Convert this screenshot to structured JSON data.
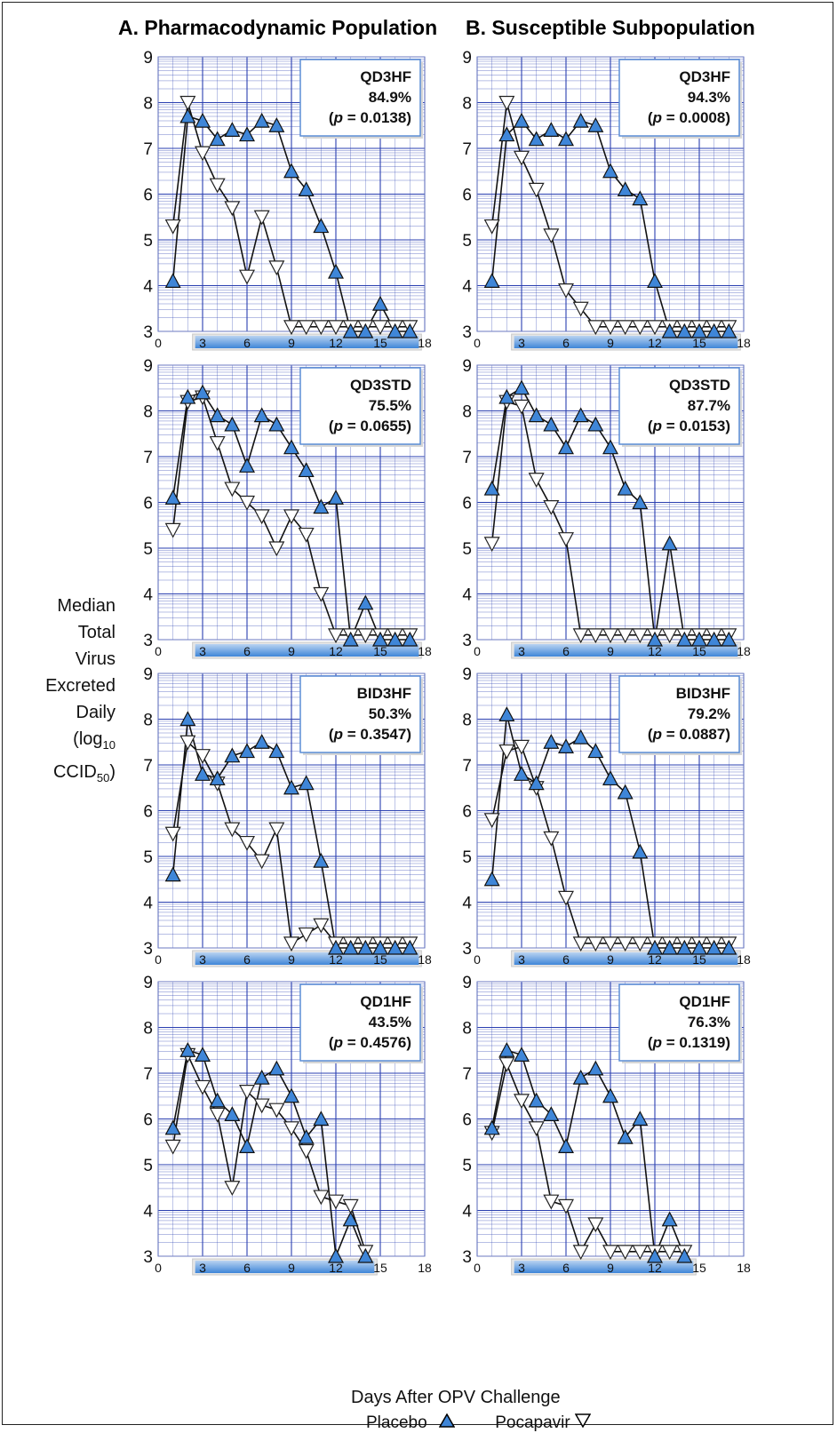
{
  "titles": {
    "a": "A.  Pharmacodynamic Population",
    "b": "B.  Susceptible Subpopulation"
  },
  "y_axis_label": [
    "Median",
    "Total",
    "Virus",
    "Excreted",
    "Daily",
    "(log",
    "10",
    "CCID",
    "50",
    ")"
  ],
  "x_axis_label": "Days After OPV Challenge",
  "legend": {
    "placebo": "Placebo",
    "pocapavir": "Pocapavir"
  },
  "colors": {
    "placebo_fill": "#3f86d8",
    "pocapavir_fill": "#ffffff",
    "grid": "#2a3fb0",
    "annotation_border": "#5b8ed6"
  },
  "chart_data": [
    {
      "type": "line",
      "column": "A",
      "regimen": "QD3HF",
      "reduction": "84.9%",
      "p_value": "0.0138",
      "x_ticks": [
        0,
        3,
        6,
        9,
        12,
        15,
        18
      ],
      "ylim": [
        3,
        9
      ],
      "xlim": [
        0,
        18
      ],
      "series": [
        {
          "name": "Placebo",
          "x": [
            1,
            2,
            3,
            4,
            5,
            6,
            7,
            8,
            9,
            10,
            11,
            12,
            13,
            14,
            15,
            16,
            17
          ],
          "values": [
            4.1,
            7.7,
            7.6,
            7.2,
            7.4,
            7.3,
            7.6,
            7.5,
            6.5,
            6.1,
            5.3,
            4.3,
            3.0,
            3.0,
            3.6,
            3.0,
            3.0
          ]
        },
        {
          "name": "Pocapavir",
          "x": [
            1,
            2,
            3,
            4,
            5,
            6,
            7,
            8,
            9,
            10,
            11,
            12,
            13,
            14,
            15,
            16,
            17
          ],
          "values": [
            5.3,
            8.0,
            6.9,
            6.2,
            5.7,
            4.2,
            5.5,
            4.4,
            3.1,
            3.1,
            3.1,
            3.1,
            3.1,
            3.1,
            3.1,
            3.1,
            3.1
          ]
        }
      ]
    },
    {
      "type": "line",
      "column": "B",
      "regimen": "QD3HF",
      "reduction": "94.3%",
      "p_value": "0.0008",
      "x_ticks": [
        0,
        3,
        6,
        9,
        12,
        15,
        18
      ],
      "ylim": [
        3,
        9
      ],
      "xlim": [
        0,
        18
      ],
      "series": [
        {
          "name": "Placebo",
          "x": [
            1,
            2,
            3,
            4,
            5,
            6,
            7,
            8,
            9,
            10,
            11,
            12,
            13,
            14,
            15,
            16,
            17
          ],
          "values": [
            4.1,
            7.3,
            7.6,
            7.2,
            7.4,
            7.2,
            7.6,
            7.5,
            6.5,
            6.1,
            5.9,
            4.1,
            3.0,
            3.0,
            3.0,
            3.0,
            3.0
          ]
        },
        {
          "name": "Pocapavir",
          "x": [
            1,
            2,
            3,
            4,
            5,
            6,
            7,
            8,
            9,
            10,
            11,
            12,
            13,
            14,
            15,
            16,
            17
          ],
          "values": [
            5.3,
            8.0,
            6.8,
            6.1,
            5.1,
            3.9,
            3.5,
            3.1,
            3.1,
            3.1,
            3.1,
            3.1,
            3.1,
            3.1,
            3.1,
            3.1,
            3.1
          ]
        }
      ]
    },
    {
      "type": "line",
      "column": "A",
      "regimen": "QD3STD",
      "reduction": "75.5%",
      "p_value": "0.0655",
      "x_ticks": [
        0,
        3,
        6,
        9,
        12,
        15,
        18
      ],
      "ylim": [
        3,
        9
      ],
      "xlim": [
        0,
        18
      ],
      "series": [
        {
          "name": "Placebo",
          "x": [
            1,
            2,
            3,
            4,
            5,
            6,
            7,
            8,
            9,
            10,
            11,
            12,
            13,
            14,
            15,
            16,
            17
          ],
          "values": [
            6.1,
            8.3,
            8.4,
            7.9,
            7.7,
            6.8,
            7.9,
            7.7,
            7.2,
            6.7,
            5.9,
            6.1,
            3.0,
            3.8,
            3.0,
            3.0,
            3.0
          ]
        },
        {
          "name": "Pocapavir",
          "x": [
            1,
            2,
            3,
            4,
            5,
            6,
            7,
            8,
            9,
            10,
            11,
            12,
            13,
            14,
            15,
            16,
            17
          ],
          "values": [
            5.4,
            8.2,
            8.3,
            7.3,
            6.3,
            6.0,
            5.7,
            5.0,
            5.7,
            5.3,
            4.0,
            3.1,
            3.1,
            3.1,
            3.1,
            3.1,
            3.1
          ]
        }
      ]
    },
    {
      "type": "line",
      "column": "B",
      "regimen": "QD3STD",
      "reduction": "87.7%",
      "p_value": "0.0153",
      "x_ticks": [
        0,
        3,
        6,
        9,
        12,
        15,
        18
      ],
      "ylim": [
        3,
        9
      ],
      "xlim": [
        0,
        18
      ],
      "series": [
        {
          "name": "Placebo",
          "x": [
            1,
            2,
            3,
            4,
            5,
            6,
            7,
            8,
            9,
            10,
            11,
            12,
            13,
            14,
            15,
            16,
            17
          ],
          "values": [
            6.3,
            8.3,
            8.5,
            7.9,
            7.7,
            7.2,
            7.9,
            7.7,
            7.2,
            6.3,
            6.0,
            3.0,
            5.1,
            3.0,
            3.0,
            3.0,
            3.0
          ]
        },
        {
          "name": "Pocapavir",
          "x": [
            1,
            2,
            3,
            4,
            5,
            6,
            7,
            8,
            9,
            10,
            11,
            12,
            13,
            14,
            15,
            16,
            17
          ],
          "values": [
            5.1,
            8.2,
            8.1,
            6.5,
            5.9,
            5.2,
            3.1,
            3.1,
            3.1,
            3.1,
            3.1,
            3.1,
            3.1,
            3.1,
            3.1,
            3.1,
            3.1
          ]
        }
      ]
    },
    {
      "type": "line",
      "column": "A",
      "regimen": "BID3HF",
      "reduction": "50.3%",
      "p_value": "0.3547",
      "x_ticks": [
        0,
        3,
        6,
        9,
        12,
        15,
        18
      ],
      "ylim": [
        3,
        9
      ],
      "xlim": [
        0,
        18
      ],
      "series": [
        {
          "name": "Placebo",
          "x": [
            1,
            2,
            3,
            4,
            5,
            6,
            7,
            8,
            9,
            10,
            11,
            12,
            13,
            14,
            15,
            16,
            17
          ],
          "values": [
            4.6,
            8.0,
            6.8,
            6.7,
            7.2,
            7.3,
            7.5,
            7.3,
            6.5,
            6.6,
            4.9,
            3.0,
            3.0,
            3.0,
            3.0,
            3.0,
            3.0
          ]
        },
        {
          "name": "Pocapavir",
          "x": [
            1,
            2,
            3,
            4,
            5,
            6,
            7,
            8,
            9,
            10,
            11,
            12,
            13,
            14,
            15,
            16,
            17
          ],
          "values": [
            5.5,
            7.5,
            7.2,
            6.6,
            5.6,
            5.3,
            4.9,
            5.6,
            3.1,
            3.3,
            3.5,
            3.1,
            3.1,
            3.1,
            3.1,
            3.1,
            3.1
          ]
        }
      ]
    },
    {
      "type": "line",
      "column": "B",
      "regimen": "BID3HF",
      "reduction": "79.2%",
      "p_value": "0.0887",
      "x_ticks": [
        0,
        3,
        6,
        9,
        12,
        15,
        18
      ],
      "ylim": [
        3,
        9
      ],
      "xlim": [
        0,
        18
      ],
      "series": [
        {
          "name": "Placebo",
          "x": [
            1,
            2,
            3,
            4,
            5,
            6,
            7,
            8,
            9,
            10,
            11,
            12,
            13,
            14,
            15,
            16,
            17
          ],
          "values": [
            4.5,
            8.1,
            6.8,
            6.6,
            7.5,
            7.4,
            7.6,
            7.3,
            6.7,
            6.4,
            5.1,
            3.0,
            3.0,
            3.0,
            3.0,
            3.0,
            3.0
          ]
        },
        {
          "name": "Pocapavir",
          "x": [
            1,
            2,
            3,
            4,
            5,
            6,
            7,
            8,
            9,
            10,
            11,
            12,
            13,
            14,
            15,
            16,
            17
          ],
          "values": [
            5.8,
            7.3,
            7.4,
            6.5,
            5.4,
            4.1,
            3.1,
            3.1,
            3.1,
            3.1,
            3.1,
            3.1,
            3.1,
            3.1,
            3.1,
            3.1,
            3.1
          ]
        }
      ]
    },
    {
      "type": "line",
      "column": "A",
      "regimen": "QD1HF",
      "reduction": "43.5%",
      "p_value": "0.4576",
      "x_ticks": [
        0,
        3,
        6,
        9,
        12,
        15,
        18
      ],
      "ylim": [
        3,
        9
      ],
      "xlim": [
        0,
        18
      ],
      "series": [
        {
          "name": "Placebo",
          "x": [
            1,
            2,
            3,
            4,
            5,
            6,
            7,
            8,
            9,
            10,
            11,
            12,
            13,
            14
          ],
          "values": [
            5.8,
            7.5,
            7.4,
            6.4,
            6.1,
            5.4,
            6.9,
            7.1,
            6.5,
            5.6,
            6.0,
            3.0,
            3.8,
            3.0
          ]
        },
        {
          "name": "Pocapavir",
          "x": [
            1,
            2,
            3,
            4,
            5,
            6,
            7,
            8,
            9,
            10,
            11,
            12,
            13,
            14
          ],
          "values": [
            5.4,
            7.4,
            6.7,
            6.1,
            4.5,
            6.6,
            6.3,
            6.2,
            5.8,
            5.3,
            4.3,
            4.2,
            4.1,
            3.1
          ]
        }
      ]
    },
    {
      "type": "line",
      "column": "B",
      "regimen": "QD1HF",
      "reduction": "76.3%",
      "p_value": "0.1319",
      "x_ticks": [
        0,
        3,
        6,
        9,
        12,
        15,
        18
      ],
      "ylim": [
        3,
        9
      ],
      "xlim": [
        0,
        18
      ],
      "series": [
        {
          "name": "Placebo",
          "x": [
            1,
            2,
            3,
            4,
            5,
            6,
            7,
            8,
            9,
            10,
            11,
            12,
            13,
            14
          ],
          "values": [
            5.8,
            7.5,
            7.4,
            6.4,
            6.1,
            5.4,
            6.9,
            7.1,
            6.5,
            5.6,
            6.0,
            3.0,
            3.8,
            3.0
          ]
        },
        {
          "name": "Pocapavir",
          "x": [
            1,
            2,
            3,
            4,
            5,
            6,
            7,
            8,
            9,
            10,
            11,
            12,
            13,
            14
          ],
          "values": [
            5.7,
            7.2,
            6.4,
            5.8,
            4.2,
            4.1,
            3.1,
            3.7,
            3.1,
            3.1,
            3.1,
            3.1,
            3.1,
            3.1
          ]
        }
      ]
    }
  ]
}
